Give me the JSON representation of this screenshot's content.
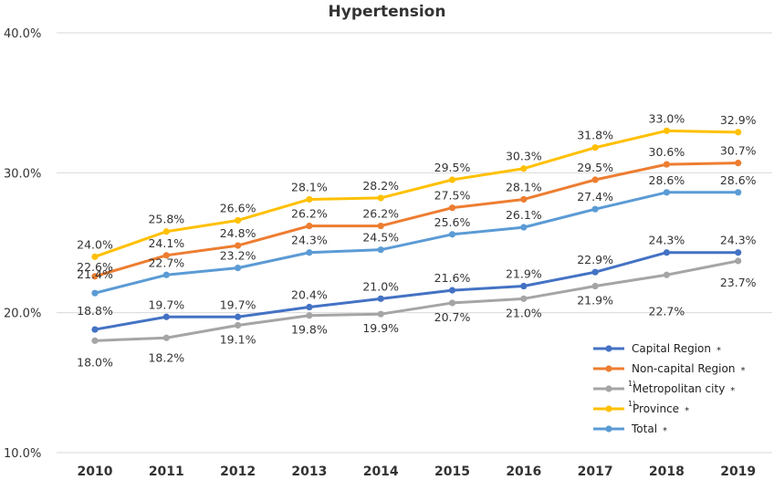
{
  "chart_data": {
    "type": "line",
    "title": "Hypertension",
    "xlabel": "",
    "ylabel": "",
    "categories": [
      "2010",
      "2011",
      "2012",
      "2013",
      "2014",
      "2015",
      "2016",
      "2017",
      "2018",
      "2019"
    ],
    "ylim": [
      10,
      40
    ],
    "yticks": [
      "10.0%",
      "20.0%",
      "30.0%",
      "40.0%"
    ],
    "grid": true,
    "legend_position": "bottom-right",
    "series": [
      {
        "key": "capital",
        "name": "Capital Region",
        "sup": "",
        "star": "*",
        "color": "#4472C4",
        "values": [
          18.8,
          19.7,
          19.7,
          20.4,
          21.0,
          21.6,
          21.9,
          22.9,
          24.3,
          24.3
        ],
        "labels": [
          "18.8%",
          "19.7%",
          "19.7%",
          "20.4%",
          "21.0%",
          "21.6%",
          "21.9%",
          "22.9%",
          "24.3%",
          "24.3%"
        ]
      },
      {
        "key": "noncapital",
        "name": "Non-capital Region",
        "sup": "",
        "star": "*",
        "color": "#ED7D31",
        "values": [
          22.6,
          24.1,
          24.8,
          26.2,
          26.2,
          27.5,
          28.1,
          29.5,
          30.6,
          30.7
        ],
        "labels": [
          "22.6%",
          "24.1%",
          "24.8%",
          "26.2%",
          "26.2%",
          "27.5%",
          "28.1%",
          "29.5%",
          "30.6%",
          "30.7%"
        ]
      },
      {
        "key": "metro",
        "name": "Metropolitan city",
        "sup": "1)",
        "star": "*",
        "color": "#A5A5A5",
        "values": [
          18.0,
          18.2,
          19.1,
          19.8,
          19.9,
          20.7,
          21.0,
          21.9,
          22.7,
          23.7
        ],
        "labels": [
          "18.0%",
          "18.2%",
          "19.1%",
          "19.8%",
          "19.9%",
          "20.7%",
          "21.0%",
          "21.9%",
          "22.7%",
          "23.7%"
        ]
      },
      {
        "key": "province",
        "name": "Province",
        "sup": "1)",
        "star": "*",
        "color": "#FFC000",
        "values": [
          24.0,
          25.8,
          26.6,
          28.1,
          28.2,
          29.5,
          30.3,
          31.8,
          33.0,
          32.9
        ],
        "labels": [
          "24.0%",
          "25.8%",
          "26.6%",
          "28.1%",
          "28.2%",
          "29.5%",
          "30.3%",
          "31.8%",
          "33.0%",
          "32.9%"
        ]
      },
      {
        "key": "total",
        "name": "Total",
        "sup": "",
        "star": "*",
        "color": "#5B9BD5",
        "values": [
          21.4,
          22.7,
          23.2,
          24.3,
          24.5,
          25.6,
          26.1,
          27.4,
          28.6,
          28.6
        ],
        "labels": [
          "21.4%",
          "22.7%",
          "23.2%",
          "24.3%",
          "24.5%",
          "25.6%",
          "26.1%",
          "27.4%",
          "28.6%",
          "28.6%"
        ]
      }
    ]
  }
}
